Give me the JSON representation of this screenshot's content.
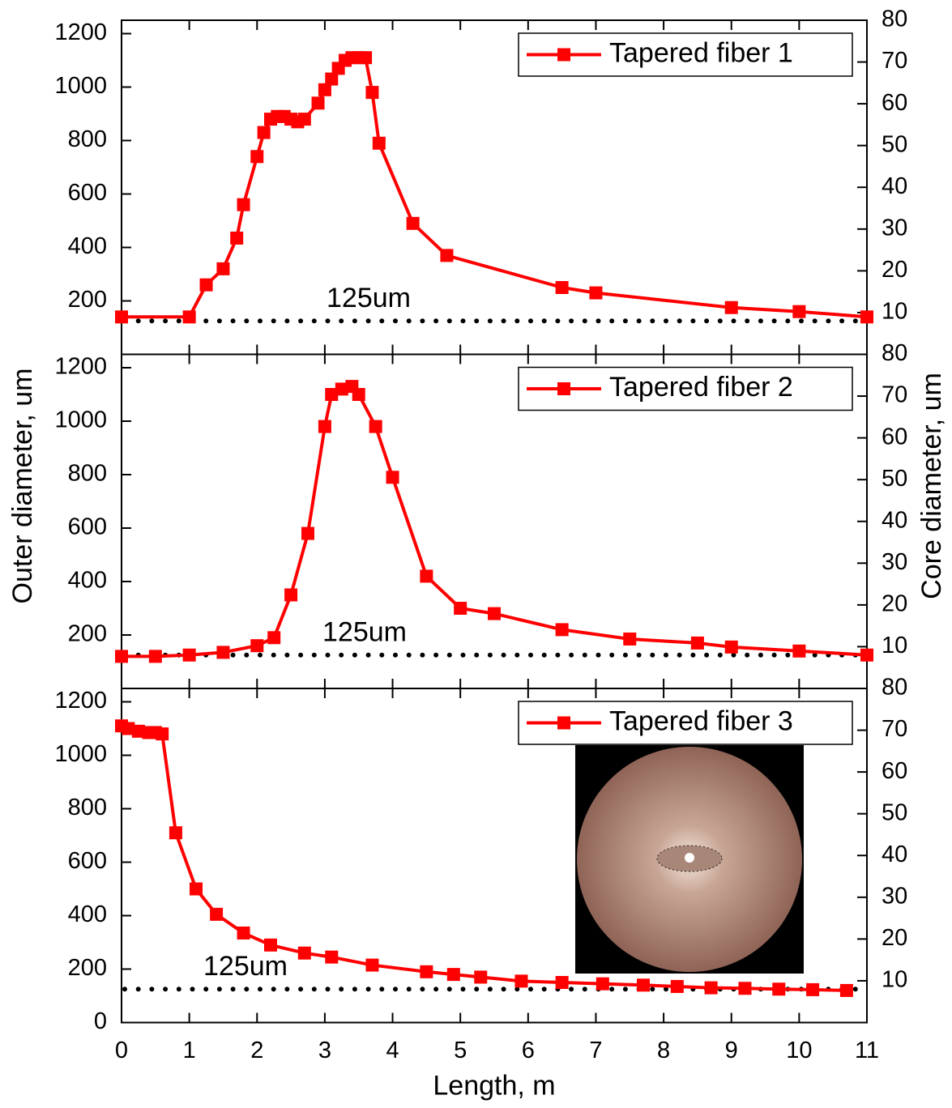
{
  "chart_data": [
    {
      "type": "line",
      "legend": "upper right",
      "x": [
        0,
        1,
        1.25,
        1.5,
        1.7,
        1.8,
        2.0,
        2.1,
        2.2,
        2.3,
        2.4,
        2.5,
        2.6,
        2.7,
        2.9,
        3.0,
        3.1,
        3.2,
        3.3,
        3.4,
        3.5,
        3.6,
        3.7,
        3.8,
        4.3,
        4.8,
        6.5,
        7.0,
        9.0,
        10.0,
        11.0
      ],
      "series": [
        {
          "name": "Tapered fiber 1",
          "color": "#ff0000",
          "values": [
            140,
            140,
            260,
            320,
            435,
            560,
            740,
            830,
            880,
            890,
            890,
            880,
            870,
            880,
            940,
            990,
            1030,
            1070,
            1100,
            1110,
            1110,
            1110,
            980,
            790,
            490,
            370,
            250,
            230,
            175,
            160,
            140
          ]
        }
      ],
      "reference": {
        "value": 125,
        "label": "125um"
      },
      "xlim": [
        0,
        11
      ],
      "xticks": [
        0,
        1,
        2,
        3,
        4,
        5,
        6,
        7,
        8,
        9,
        10,
        11
      ],
      "ylim": [
        0,
        1250
      ],
      "yticks": [
        200,
        400,
        600,
        800,
        1000,
        1200
      ],
      "y2lim": [
        0,
        80
      ],
      "y2ticks": [
        10,
        20,
        30,
        40,
        50,
        60,
        70,
        80
      ]
    },
    {
      "type": "line",
      "legend": "upper right",
      "ylabel": "Outer diameter, um",
      "y2label": "Core diameter, um",
      "x": [
        0,
        0.5,
        1,
        1.5,
        2.0,
        2.25,
        2.5,
        2.75,
        3.0,
        3.1,
        3.25,
        3.4,
        3.5,
        3.75,
        4.0,
        4.5,
        5.0,
        5.5,
        6.5,
        7.5,
        8.5,
        9.0,
        10.0,
        11.0
      ],
      "series": [
        {
          "name": "Tapered fiber 2",
          "color": "#ff0000",
          "values": [
            120,
            120,
            125,
            135,
            160,
            190,
            350,
            580,
            980,
            1100,
            1120,
            1130,
            1100,
            980,
            790,
            420,
            300,
            280,
            220,
            185,
            170,
            155,
            140,
            125
          ]
        }
      ],
      "reference": {
        "value": 125,
        "label": "125um"
      },
      "xlim": [
        0,
        11
      ],
      "xticks": [
        0,
        1,
        2,
        3,
        4,
        5,
        6,
        7,
        8,
        9,
        10,
        11
      ],
      "ylim": [
        0,
        1250
      ],
      "yticks": [
        200,
        400,
        600,
        800,
        1000,
        1200
      ],
      "y2lim": [
        0,
        80
      ],
      "y2ticks": [
        10,
        20,
        30,
        40,
        50,
        60,
        70,
        80
      ]
    },
    {
      "type": "line",
      "legend": "upper right",
      "xlabel": "Length, m",
      "x": [
        0,
        0.1,
        0.25,
        0.4,
        0.5,
        0.6,
        0.8,
        1.1,
        1.4,
        1.8,
        2.2,
        2.7,
        3.1,
        3.7,
        4.5,
        4.9,
        5.3,
        5.9,
        6.5,
        7.1,
        7.7,
        8.2,
        8.7,
        9.2,
        9.7,
        10.2,
        10.7
      ],
      "series": [
        {
          "name": "Tapered fiber 3",
          "color": "#ff0000",
          "values": [
            1110,
            1100,
            1090,
            1085,
            1085,
            1080,
            710,
            500,
            405,
            335,
            290,
            260,
            245,
            215,
            190,
            180,
            170,
            155,
            150,
            145,
            140,
            135,
            130,
            128,
            125,
            123,
            120
          ]
        }
      ],
      "reference": {
        "value": 125,
        "label": "125um"
      },
      "xlim": [
        0,
        11
      ],
      "xticks": [
        0,
        1,
        2,
        3,
        4,
        5,
        6,
        7,
        8,
        9,
        10,
        11
      ],
      "ylim": [
        0,
        1250
      ],
      "yticks": [
        0,
        200,
        400,
        600,
        800,
        1000,
        1200
      ],
      "y2lim": [
        0,
        80
      ],
      "y2ticks": [
        10,
        20,
        30,
        40,
        50,
        60,
        70,
        80
      ]
    }
  ]
}
